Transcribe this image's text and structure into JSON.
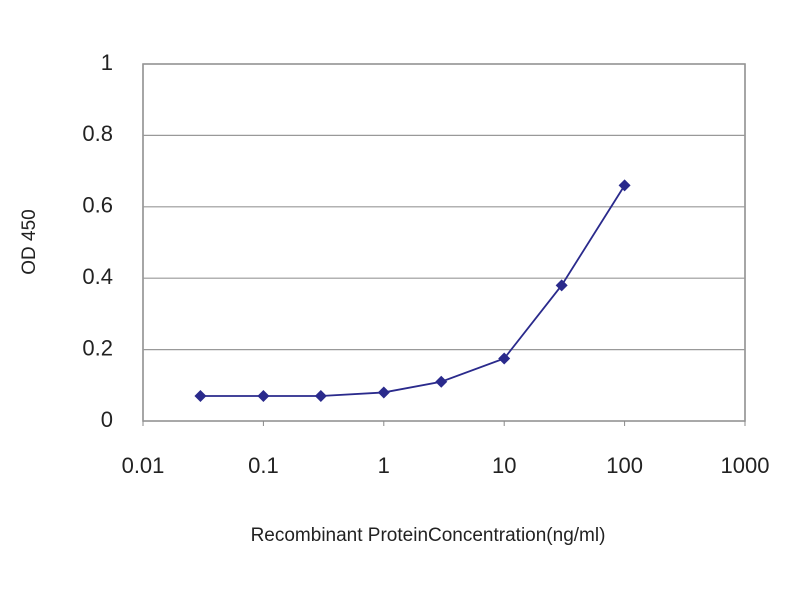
{
  "chart_data": {
    "type": "line",
    "x_label": "Recombinant ProteinConcentration(ng/ml)",
    "y_label": "OD 450",
    "x": [
      0.03,
      0.1,
      0.3,
      1,
      3,
      10,
      30,
      100
    ],
    "series": [
      {
        "color": "#2a2a8c",
        "values": [
          0.07,
          0.07,
          0.07,
          0.08,
          0.11,
          0.175,
          0.38,
          0.66
        ]
      }
    ],
    "xlim": [
      0.01,
      1000
    ],
    "xticks": [
      0.01,
      0.1,
      1,
      10,
      100,
      1000
    ],
    "xscale": "log",
    "ylim": [
      0,
      1
    ],
    "yticks": [
      0,
      0.2,
      0.4,
      0.6,
      0.8,
      1
    ],
    "grid": true
  }
}
